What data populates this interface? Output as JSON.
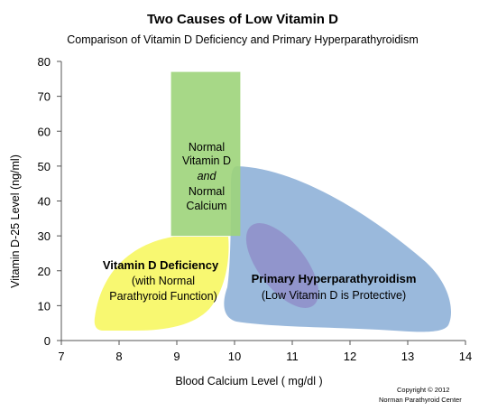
{
  "chart_data": {
    "type": "area",
    "title": "Two Causes of Low Vitamin D",
    "subtitle": "Comparison of Vitamin D Deficiency and Primary Hyperparathyroidism",
    "xlabel": "Blood Calcium Level   ( mg/dl )",
    "ylabel": "Vitamin D-25 Level   (ng/ml)",
    "xlim": [
      7,
      14
    ],
    "ylim": [
      0,
      80
    ],
    "xticks": [
      "7",
      "8",
      "9",
      "10",
      "11",
      "12",
      "13",
      "14"
    ],
    "yticks": [
      "0",
      "10",
      "20",
      "30",
      "40",
      "50",
      "60",
      "70",
      "80"
    ],
    "grid": false,
    "regions": [
      {
        "key": "normal",
        "shape": "rectangle",
        "color": "#9dd47a",
        "x_range": [
          8.9,
          10.1
        ],
        "y_range": [
          30,
          77
        ],
        "label_lines": [
          "Normal",
          "Vitamin D",
          "and",
          "Normal",
          "Calcium"
        ]
      },
      {
        "key": "deficiency",
        "shape": "blob",
        "color": "#f7f762",
        "approx_x_range": [
          7.6,
          9.8
        ],
        "approx_y_range": [
          3,
          30
        ],
        "label_title": "Vitamin D Deficiency",
        "label_lines": [
          "(with Normal",
          "Parathyroid Function)"
        ]
      },
      {
        "key": "hyperpara",
        "shape": "blob",
        "color": "#8fb1d8",
        "approx_x_range": [
          9.7,
          13.7
        ],
        "approx_y_range": [
          4,
          50
        ],
        "label_title": "Primary Hyperparathyroidism",
        "label_lines": [
          "(Low Vitamin D is Protective)"
        ]
      },
      {
        "key": "overlap",
        "shape": "ellipse",
        "color": "#8a78bf",
        "approx_x_range": [
          10.1,
          11.4
        ],
        "approx_y_range": [
          8,
          35
        ]
      }
    ],
    "copyright": [
      "Copyright © 2012",
      "Norman Parathyroid  Center"
    ]
  }
}
